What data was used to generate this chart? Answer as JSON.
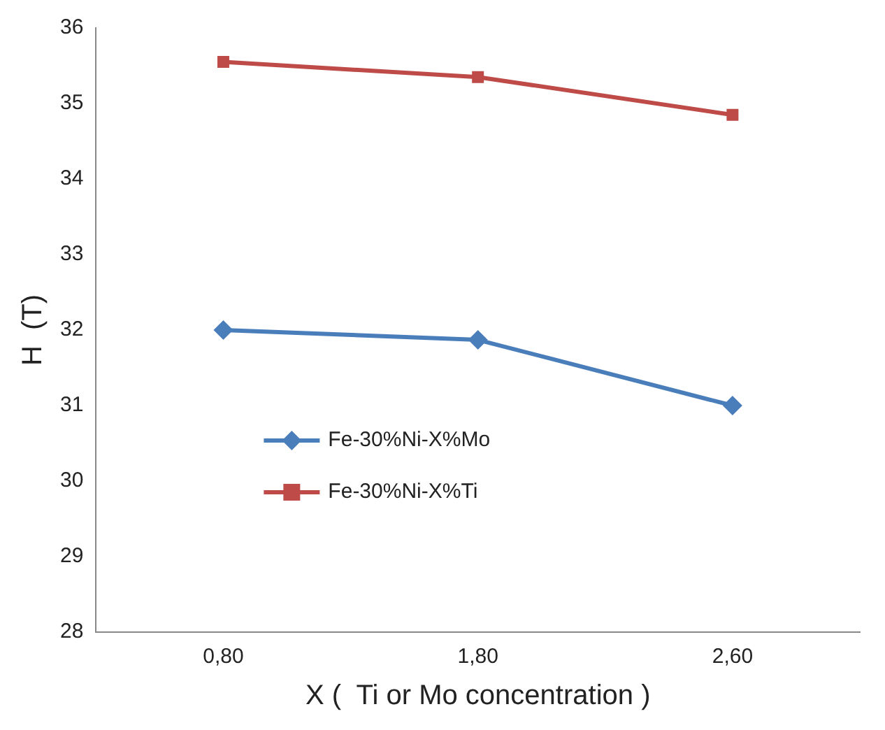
{
  "chart_data": {
    "type": "line",
    "xlabel": "X (  Ti or Mo concentration )",
    "ylabel": "H  (T)",
    "categories": [
      "0,80",
      "1,80",
      "2,60"
    ],
    "series": [
      {
        "name": "Fe-30%Ni-X%Mo",
        "color": "#4a7ebb",
        "marker": "diamond",
        "values": [
          32.0,
          31.87,
          31.0
        ]
      },
      {
        "name": "Fe-30%Ni-X%Ti",
        "color": "#be4b48",
        "marker": "square",
        "values": [
          35.55,
          35.35,
          34.85
        ]
      }
    ],
    "ylim": [
      28,
      36
    ],
    "yticks": [
      28,
      29,
      30,
      31,
      32,
      33,
      34,
      35,
      36
    ],
    "grid": false,
    "legend": "center left",
    "line_style": "solid"
  }
}
